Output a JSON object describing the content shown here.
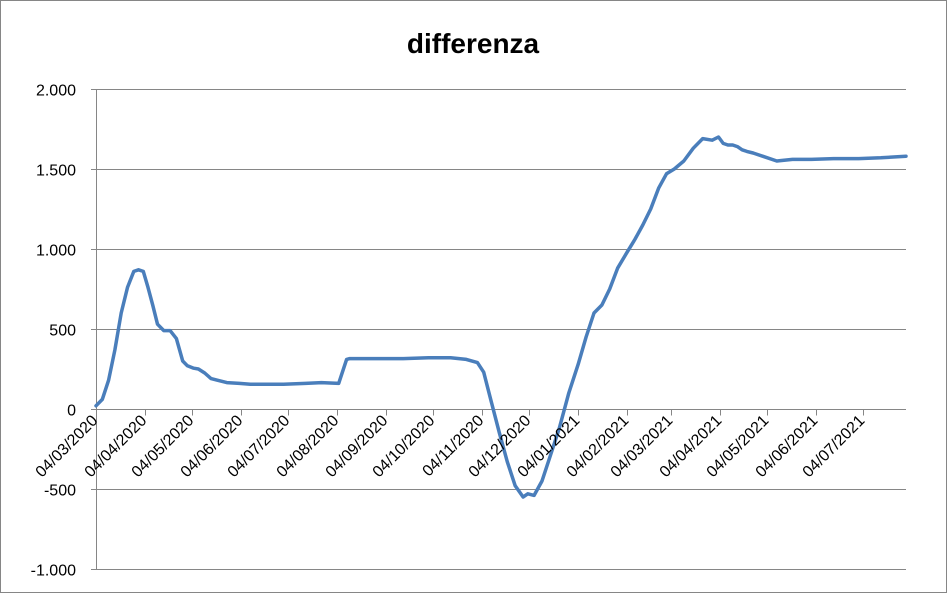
{
  "chart_data": {
    "type": "line",
    "title": "differenza",
    "xlabel": "",
    "ylabel": "",
    "ylim": [
      -1000,
      2000
    ],
    "yticks": [
      -1000,
      -500,
      0,
      500,
      1000,
      1500,
      2000
    ],
    "ytick_labels": [
      "-1.000",
      "-500",
      "0",
      "500",
      "1.000",
      "1.500",
      "2.000"
    ],
    "xlim": [
      "2020-03-04",
      "2021-07-31"
    ],
    "xticks": [
      "2020-03-04",
      "2020-04-04",
      "2020-05-04",
      "2020-06-04",
      "2020-07-04",
      "2020-08-04",
      "2020-09-04",
      "2020-10-04",
      "2020-11-04",
      "2020-12-04",
      "2021-01-04",
      "2021-02-04",
      "2021-03-04",
      "2021-04-04",
      "2021-05-04",
      "2021-06-04",
      "2021-07-04"
    ],
    "xtick_labels": [
      "04/03/2020",
      "04/04/2020",
      "04/05/2020",
      "04/06/2020",
      "04/07/2020",
      "04/08/2020",
      "04/09/2020",
      "04/10/2020",
      "04/11/2020",
      "04/12/2020",
      "04/01/2021",
      "04/02/2021",
      "04/03/2021",
      "04/04/2021",
      "04/05/2021",
      "04/06/2021",
      "04/07/2021"
    ],
    "grid": true,
    "legend": "none",
    "colors": {
      "line": "#4A7EBB",
      "grid": "#868686",
      "axis": "#868686",
      "text": "#000000"
    },
    "series": [
      {
        "x": [
          "2020-03-04",
          "2020-03-08",
          "2020-03-12",
          "2020-03-16",
          "2020-03-20",
          "2020-03-24",
          "2020-03-28",
          "2020-03-31",
          "2020-04-03",
          "2020-04-06",
          "2020-04-09",
          "2020-04-12",
          "2020-04-16",
          "2020-04-20",
          "2020-04-24",
          "2020-04-28",
          "2020-05-01",
          "2020-05-05",
          "2020-05-08",
          "2020-05-12",
          "2020-05-16",
          "2020-05-20",
          "2020-05-26",
          "2020-06-03",
          "2020-06-10",
          "2020-06-20",
          "2020-07-01",
          "2020-07-15",
          "2020-07-25",
          "2020-08-05",
          "2020-08-10",
          "2020-08-12",
          "2020-08-13",
          "2020-08-20",
          "2020-09-01",
          "2020-09-15",
          "2020-10-01",
          "2020-10-15",
          "2020-10-25",
          "2020-11-01",
          "2020-11-05",
          "2020-11-10",
          "2020-11-15",
          "2020-11-20",
          "2020-11-25",
          "2020-11-30",
          "2020-12-03",
          "2020-12-07",
          "2020-12-12",
          "2020-12-17",
          "2020-12-23",
          "2020-12-29",
          "2021-01-04",
          "2021-01-09",
          "2021-01-14",
          "2021-01-19",
          "2021-01-24",
          "2021-01-29",
          "2021-02-04",
          "2021-02-09",
          "2021-02-14",
          "2021-02-19",
          "2021-02-24",
          "2021-03-01",
          "2021-03-06",
          "2021-03-12",
          "2021-03-18",
          "2021-03-24",
          "2021-03-30",
          "2021-04-03",
          "2021-04-06",
          "2021-04-09",
          "2021-04-12",
          "2021-04-15",
          "2021-04-18",
          "2021-04-21",
          "2021-04-25",
          "2021-05-01",
          "2021-05-10",
          "2021-05-20",
          "2021-06-01",
          "2021-06-15",
          "2021-07-01",
          "2021-07-15",
          "2021-07-31"
        ],
        "y": [
          20,
          60,
          180,
          370,
          600,
          760,
          860,
          870,
          860,
          760,
          650,
          530,
          490,
          490,
          440,
          300,
          270,
          255,
          250,
          225,
          190,
          180,
          165,
          160,
          155,
          155,
          155,
          160,
          165,
          160,
          310,
          315,
          315,
          315,
          315,
          315,
          320,
          320,
          310,
          290,
          230,
          40,
          -150,
          -330,
          -480,
          -550,
          -530,
          -540,
          -450,
          -300,
          -120,
          100,
          280,
          450,
          600,
          650,
          750,
          880,
          980,
          1060,
          1150,
          1250,
          1380,
          1470,
          1500,
          1550,
          1630,
          1690,
          1680,
          1700,
          1660,
          1650,
          1650,
          1640,
          1620,
          1610,
          1600,
          1580,
          1550,
          1560,
          1560,
          1565,
          1565,
          1570,
          1580
        ]
      }
    ]
  }
}
